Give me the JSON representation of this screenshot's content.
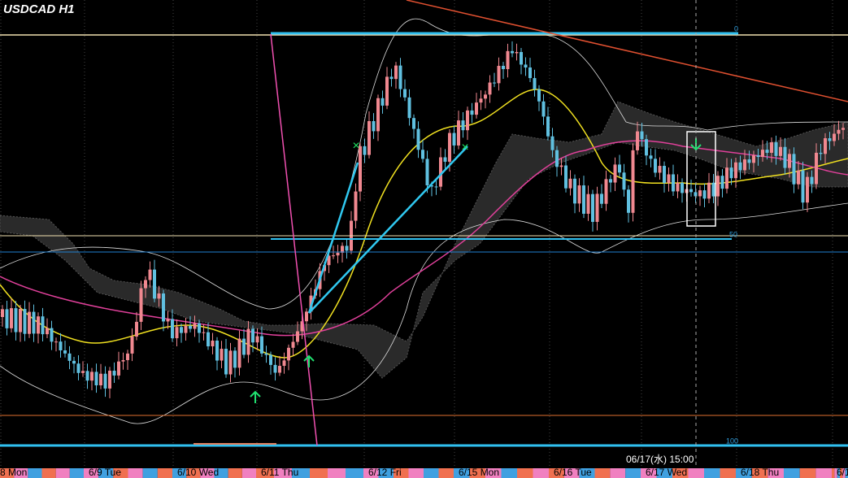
{
  "header": {
    "title": "USDCAD H1"
  },
  "fib_levels": [
    "0",
    "50",
    "100"
  ],
  "time_axis": [
    "8 Mon",
    "6/9 Tue",
    "6/10 Wed",
    "6/11 Thu",
    "6/12 Fri",
    "6/15 Mon",
    "6/16 Tue",
    "6/17 Wed",
    "6/18 Thu",
    "6/1"
  ],
  "crosshair_label": "06/17(水) 15:00"
}
